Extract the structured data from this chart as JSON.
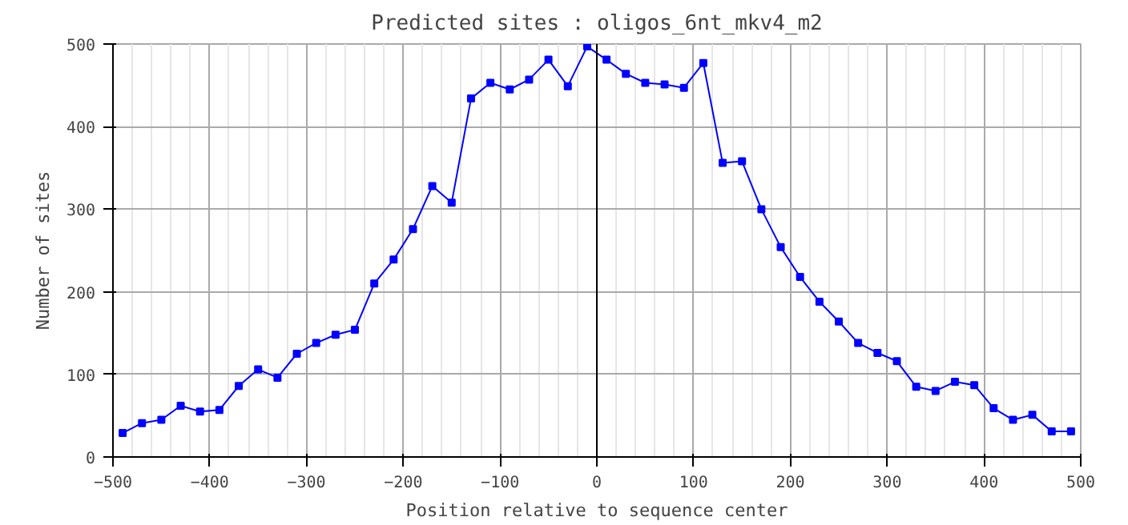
{
  "chart_data": {
    "type": "line",
    "title": "Predicted sites : oligos_6nt_mkv4_m2",
    "xlabel": "Position relative to sequence center",
    "ylabel": "Number of sites",
    "x": [
      -490,
      -470,
      -450,
      -430,
      -410,
      -390,
      -370,
      -350,
      -330,
      -310,
      -290,
      -270,
      -250,
      -230,
      -210,
      -190,
      -170,
      -150,
      -130,
      -110,
      -90,
      -70,
      -50,
      -30,
      -10,
      10,
      30,
      50,
      70,
      90,
      110,
      130,
      150,
      170,
      190,
      210,
      230,
      250,
      270,
      290,
      310,
      330,
      350,
      370,
      390,
      410,
      430,
      450,
      470,
      490
    ],
    "series": [
      {
        "color": "#0000ff",
        "values": [
          29,
          41,
          45,
          62,
          55,
          57,
          86,
          106,
          96,
          125,
          138,
          148,
          154,
          210,
          239,
          276,
          328,
          308,
          434,
          453,
          445,
          457,
          481,
          449,
          497,
          481,
          464,
          453,
          451,
          447,
          477,
          356,
          358,
          300,
          254,
          218,
          188,
          164,
          138,
          126,
          116,
          85,
          80,
          91,
          87,
          59,
          45,
          51,
          31,
          31
        ]
      }
    ],
    "xlim": [
      -500,
      500
    ],
    "ylim": [
      0,
      500
    ],
    "xticks": [
      -500,
      -400,
      -300,
      -200,
      -100,
      0,
      100,
      200,
      300,
      400,
      500
    ],
    "yticks": [
      0,
      100,
      200,
      300,
      400,
      500
    ],
    "ref_lines": [
      {
        "axis": "x",
        "value": 0,
        "color": "#000000"
      }
    ],
    "grid": true,
    "marker": "square",
    "line_style": "solid"
  }
}
